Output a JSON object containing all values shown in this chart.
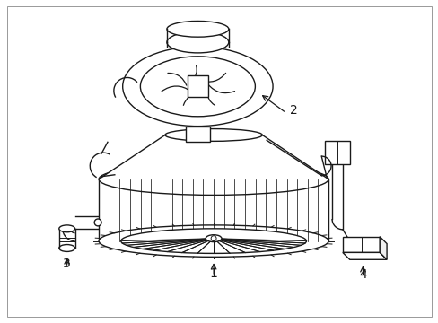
{
  "background_color": "#ffffff",
  "figsize": [
    4.89,
    3.6
  ],
  "dpi": 100,
  "line_color": "#1a1a1a",
  "line_width": 1.0
}
